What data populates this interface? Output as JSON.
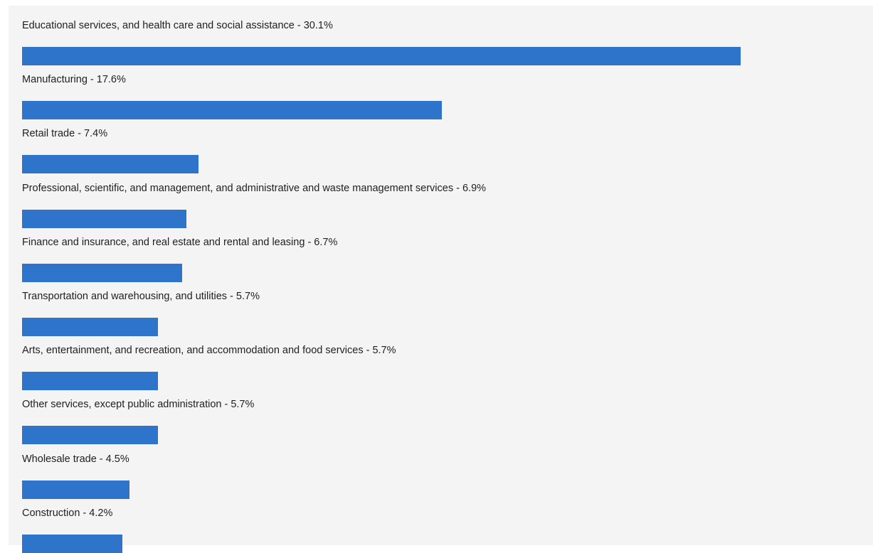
{
  "chart_data": {
    "type": "bar",
    "orientation": "horizontal",
    "categories": [
      "Educational services, and health care and social assistance",
      "Manufacturing",
      "Retail trade",
      "Professional, scientific, and management, and administrative and waste management services",
      "Finance and insurance, and real estate and rental and leasing",
      "Transportation and warehousing, and utilities",
      "Arts, entertainment, and recreation, and accommodation and food services",
      "Other services, except public administration",
      "Wholesale trade",
      "Construction"
    ],
    "values": [
      30.1,
      17.6,
      7.4,
      6.9,
      6.7,
      5.7,
      5.7,
      5.7,
      4.5,
      4.2
    ],
    "labels": [
      "Educational services, and health care and social assistance - 30.1%",
      "Manufacturing - 17.6%",
      "Retail trade - 7.4%",
      "Professional, scientific, and management, and administrative and waste management services - 6.9%",
      "Finance and insurance, and real estate and rental and leasing - 6.7%",
      "Transportation and warehousing, and utilities - 5.7%",
      "Arts, entertainment, and recreation, and accommodation and food services - 5.7%",
      "Other services, except public administration - 5.7%",
      "Wholesale trade - 4.5%",
      "Construction - 4.2%"
    ],
    "unit": "%",
    "grid": false,
    "legend": "none",
    "bar_color": "#2f74cb"
  }
}
